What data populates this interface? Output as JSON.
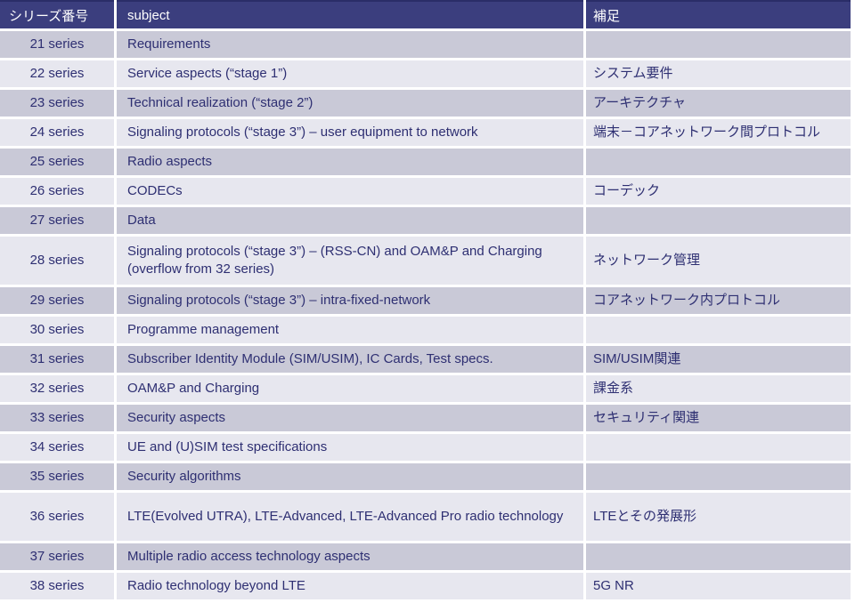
{
  "colors": {
    "header_bg": "#3b3e7e",
    "header_top_border": "#2a2d68",
    "header_text": "#ffffff",
    "row_dark_bg": "#c9c9d7",
    "row_light_bg": "#e7e7ef",
    "body_text": "#2e2f72",
    "grid_gap": "#ffffff"
  },
  "table": {
    "headers": [
      "シリーズ番号",
      "subject",
      "補足"
    ],
    "rows": [
      {
        "series": "21 series",
        "subject": "Requirements",
        "note": ""
      },
      {
        "series": "22 series",
        "subject": "Service aspects (“stage 1”)",
        "note": "システム要件"
      },
      {
        "series": "23 series",
        "subject": "Technical realization (“stage 2”)",
        "note": "アーキテクチャ"
      },
      {
        "series": "24 series",
        "subject": "Signaling protocols (“stage 3”) – user equipment to network",
        "note": "端末－コアネットワーク間プロトコル"
      },
      {
        "series": "25 series",
        "subject": "Radio aspects",
        "note": ""
      },
      {
        "series": "26 series",
        "subject": "CODECs",
        "note": "コーデック"
      },
      {
        "series": "27 series",
        "subject": "Data",
        "note": ""
      },
      {
        "series": "28 series",
        "subject": "Signaling protocols (“stage 3”) – (RSS-CN) and OAM&P and Charging (overflow from 32 series)",
        "note": "ネットワーク管理"
      },
      {
        "series": "29 series",
        "subject": "Signaling protocols (“stage 3”) – intra-fixed-network",
        "note": "コアネットワーク内プロトコル"
      },
      {
        "series": "30 series",
        "subject": "Programme management",
        "note": ""
      },
      {
        "series": "31 series",
        "subject": "Subscriber Identity Module (SIM/USIM), IC Cards, Test specs.",
        "note": "SIM/USIM関連"
      },
      {
        "series": "32 series",
        "subject": "OAM&P and Charging",
        "note": "課金系"
      },
      {
        "series": "33 series",
        "subject": "Security aspects",
        "note": "セキュリティ関連"
      },
      {
        "series": "34 series",
        "subject": "UE and (U)SIM test specifications",
        "note": ""
      },
      {
        "series": "35 series",
        "subject": "Security algorithms",
        "note": ""
      },
      {
        "series": "36 series",
        "subject": "LTE(Evolved UTRA), LTE-Advanced, LTE-Advanced Pro radio technology",
        "note": "LTEとその発展形"
      },
      {
        "series": "37 series",
        "subject": "Multiple radio access technology aspects",
        "note": ""
      },
      {
        "series": "38 series",
        "subject": "Radio technology beyond LTE",
        "note": "5G NR"
      }
    ]
  }
}
